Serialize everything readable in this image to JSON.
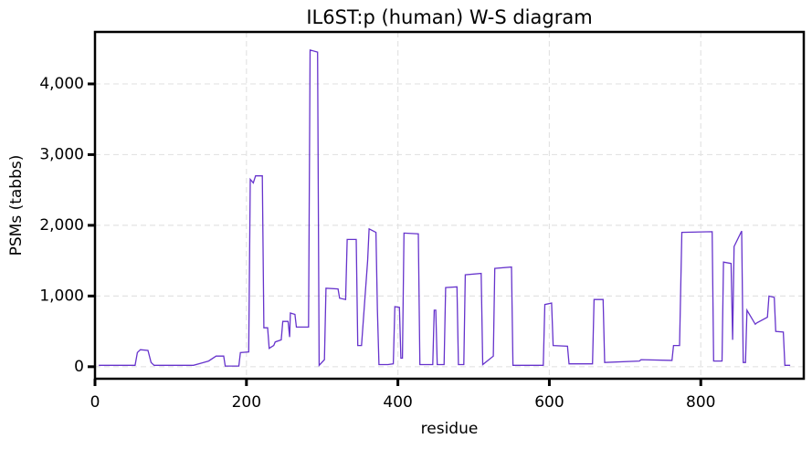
{
  "chart_data": {
    "type": "line",
    "title": "IL6ST:p (human) W-S diagram",
    "x_label": "residue",
    "y_label": "PSMs (tabbs)",
    "x": [
      5,
      53,
      56,
      60,
      70,
      74,
      78,
      130,
      140,
      150,
      160,
      170,
      172,
      190,
      192,
      203,
      205,
      209,
      212,
      221,
      223,
      228,
      230,
      236,
      238,
      246,
      248,
      255,
      257,
      258,
      264,
      266,
      282,
      284,
      294,
      296,
      303,
      305,
      321,
      323,
      331,
      333,
      345,
      347,
      352,
      360,
      362,
      371,
      373,
      375,
      387,
      394,
      396,
      402,
      404,
      406,
      408,
      427,
      429,
      446,
      448,
      450,
      452,
      461,
      463,
      478,
      480,
      487,
      489,
      510,
      512,
      526,
      528,
      550,
      552,
      592,
      594,
      603,
      605,
      624,
      626,
      657,
      659,
      671,
      673,
      719,
      721,
      762,
      764,
      772,
      775,
      815,
      817,
      828,
      830,
      840,
      842,
      844,
      854,
      856,
      859,
      861,
      872,
      874,
      888,
      890,
      897,
      899,
      909,
      911,
      918
    ],
    "series": [
      {
        "name": "IL6ST:p",
        "color": "#6633cc",
        "values": [
          20,
          20,
          200,
          240,
          230,
          60,
          20,
          20,
          50,
          80,
          150,
          150,
          10,
          10,
          200,
          210,
          2650,
          2600,
          2700,
          2700,
          550,
          550,
          260,
          300,
          350,
          380,
          640,
          640,
          420,
          760,
          740,
          560,
          560,
          4480,
          4450,
          20,
          100,
          1110,
          1100,
          970,
          950,
          1800,
          1800,
          300,
          300,
          1500,
          1950,
          1900,
          800,
          30,
          30,
          40,
          850,
          840,
          120,
          120,
          1890,
          1880,
          30,
          30,
          800,
          800,
          30,
          30,
          1120,
          1130,
          30,
          30,
          1300,
          1320,
          30,
          150,
          1390,
          1410,
          20,
          20,
          880,
          900,
          300,
          290,
          40,
          40,
          950,
          950,
          60,
          80,
          100,
          90,
          300,
          300,
          1900,
          1910,
          80,
          80,
          1480,
          1460,
          380,
          1700,
          1920,
          60,
          60,
          800,
          600,
          620,
          700,
          1000,
          980,
          500,
          490,
          20,
          20
        ]
      }
    ],
    "xlim": [
      0,
      936
    ],
    "ylim": [
      -170,
      4735
    ],
    "xticks": [
      0,
      200,
      400,
      600,
      800
    ],
    "yticks": [
      0,
      {
        "value": 1000,
        "label": "1,000"
      },
      {
        "value": 2000,
        "label": "2,000"
      },
      {
        "value": 3000,
        "label": "3,000"
      },
      {
        "value": 4000,
        "label": "4,000"
      }
    ],
    "grid": true
  }
}
